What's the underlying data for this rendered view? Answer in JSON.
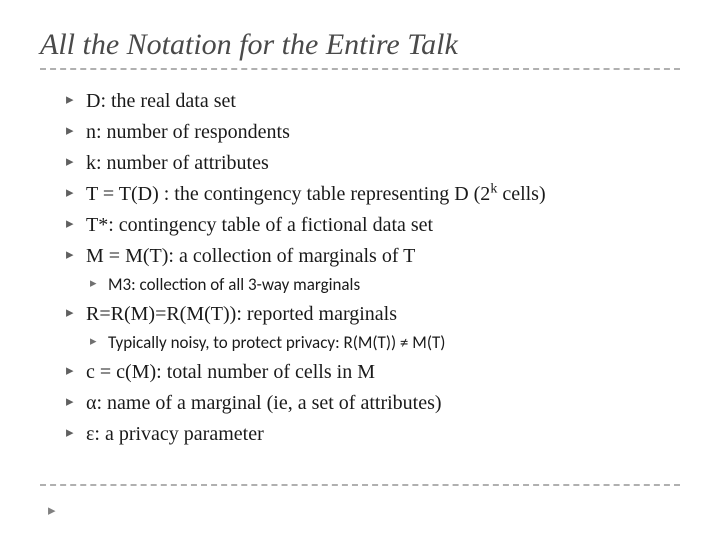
{
  "title": "All the Notation for the Entire Talk",
  "colors": {
    "title_color": "#4a4a4a",
    "text_color": "#1a1a1a",
    "bullet_color": "#606060",
    "divider_color": "#b0b0b0",
    "background": "#ffffff"
  },
  "typography": {
    "title_fontsize": 30,
    "title_font": "Palatino Linotype, italic",
    "body_fontsize": 20,
    "sub_fontsize": 17,
    "body_font": "Georgia, serif",
    "sub_font": "Calibri, sans-serif"
  },
  "bullets": [
    {
      "text": "D: the real data set"
    },
    {
      "text": "n: number of respondents"
    },
    {
      "text": "k: number of attributes"
    },
    {
      "prefix": "T = T(D) : the contingency table representing D (2",
      "sup": "k",
      "suffix": " cells)"
    },
    {
      "text": "T*:  contingency table of a fictional data set"
    },
    {
      "text": "M = M(T): a collection of marginals  of T",
      "sub": [
        "M3: collection of all 3-way marginals"
      ]
    },
    {
      "text": "R=R(M)=R(M(T)): reported  marginals",
      "sub": [
        "Typically noisy, to protect privacy:  R(M(T)) ≠ M(T)"
      ]
    },
    {
      "text": "c = c(M): total number of cells in M"
    },
    {
      "text": "α: name of a marginal  (ie, a set of attributes)"
    },
    {
      "text": "ε: a privacy parameter"
    }
  ],
  "item4": {
    "prefix": "T = T(D) : the contingency table representing D (2",
    "sup": "k",
    "suffix": " cells)"
  },
  "b0": "D: the real data set",
  "b1": "n: number of respondents",
  "b2": "k: number of attributes",
  "b4": "T*:  contingency table of a fictional data set",
  "b5": "M = M(T): a collection of marginals  of T",
  "b5s0": "M3: collection of all 3-way marginals",
  "b6": "R=R(M)=R(M(T)): reported  marginals",
  "b6s0": "Typically noisy, to protect privacy:  R(M(T)) ≠ M(T)",
  "b7": "c = c(M): total number of cells in M",
  "b8": "α: name of a marginal  (ie, a set of attributes)",
  "b9": "ε: a privacy parameter",
  "footer_marker": "▸"
}
